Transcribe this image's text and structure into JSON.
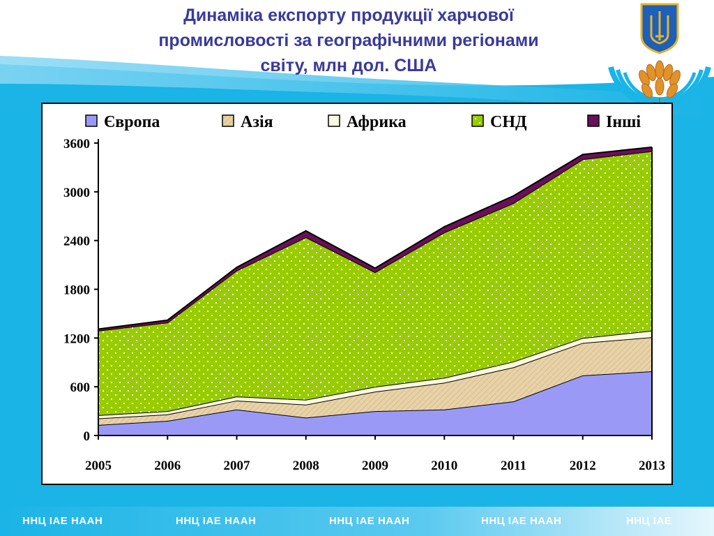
{
  "header": {
    "title_lines": [
      "Динаміка експорту продукції харчової",
      "промисловості за географічними регіонами",
      "світу, млн дол. США"
    ]
  },
  "colors": {
    "title": "#3a3a9a",
    "europe": "#9a9af6",
    "asia": "#e8d2a8",
    "africa": "#fbfbe0",
    "cis": "#99cc00",
    "other": "#6a0f5a",
    "band_blue": "#1ab4e6"
  },
  "footer": {
    "items": [
      "ННЦ ІАЕ   НААН",
      "ННЦ ІАЕ   НААН",
      "ННЦ ІАЕ   НААН",
      "ННЦ ІАЕ   НААН",
      "ННЦ ІАЕ"
    ]
  },
  "chart_data": {
    "type": "area",
    "stacked": true,
    "x": [
      "2005",
      "2006",
      "2007",
      "2008",
      "2009",
      "2010",
      "2011",
      "2012",
      "2013"
    ],
    "ylim": [
      0,
      3600
    ],
    "yticks": [
      0,
      600,
      1200,
      1800,
      2400,
      3000,
      3600
    ],
    "legend_position": "top",
    "grid": false,
    "series": [
      {
        "name": "Європа",
        "color": "#9a9af6",
        "values": [
          130,
          180,
          320,
          220,
          300,
          320,
          420,
          740,
          790
        ]
      },
      {
        "name": "Азія",
        "color": "#e8d2a8",
        "values": [
          80,
          80,
          110,
          160,
          240,
          330,
          420,
          400,
          420
        ]
      },
      {
        "name": "Африка",
        "color": "#fbfbe0",
        "values": [
          40,
          40,
          50,
          60,
          60,
          60,
          70,
          60,
          80
        ]
      },
      {
        "name": "СНД",
        "color": "#99cc00",
        "values": [
          1040,
          1090,
          1550,
          2000,
          1410,
          1790,
          1950,
          2200,
          2210
        ]
      },
      {
        "name": "Інші",
        "color": "#6a0f5a",
        "values": [
          20,
          30,
          40,
          80,
          50,
          70,
          90,
          60,
          50
        ]
      }
    ]
  }
}
